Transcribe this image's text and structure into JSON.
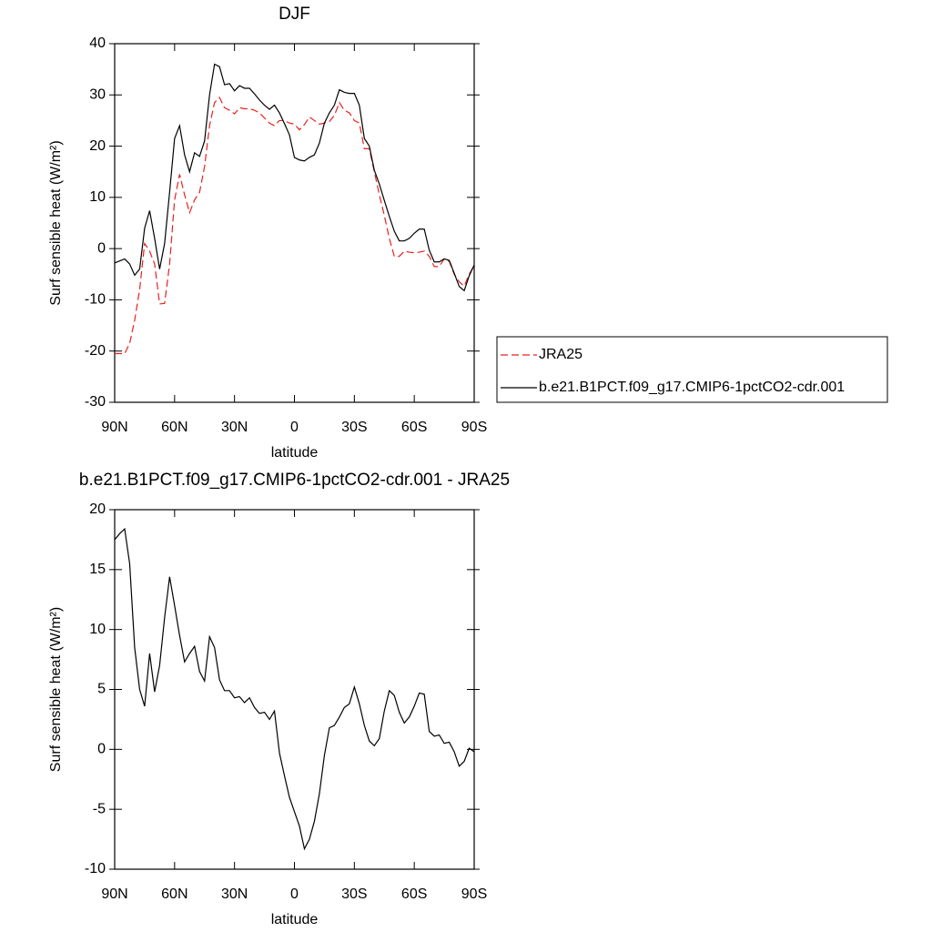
{
  "chart_data": [
    {
      "type": "line",
      "title": "DJF",
      "x_label": "latitude",
      "y_label": "Surf sensible heat (W/m²)",
      "x": [
        90,
        87.5,
        85,
        82.5,
        80,
        77.5,
        75,
        72.5,
        70,
        67.5,
        65,
        62.5,
        60,
        57.5,
        55,
        52.5,
        50,
        47.5,
        45,
        42.5,
        40,
        37.5,
        35,
        32.5,
        30,
        27.5,
        25,
        22.5,
        20,
        17.5,
        15,
        12.5,
        10,
        7.5,
        5,
        2.5,
        0,
        -2.5,
        -5,
        -7.5,
        -10,
        -12.5,
        -15,
        -17.5,
        -20,
        -22.5,
        -25,
        -27.5,
        -30,
        -32.5,
        -35,
        -37.5,
        -40,
        -42.5,
        -45,
        -47.5,
        -50,
        -52.5,
        -55,
        -57.5,
        -60,
        -62.5,
        -65,
        -67.5,
        -70,
        -72.5,
        -75,
        -77.5,
        -80,
        -82.5,
        -85,
        -87.5,
        -90
      ],
      "series": [
        {
          "name": "JRA25",
          "color": "#e8201f",
          "dash": true,
          "values": [
            -20.5,
            -20.5,
            -20.5,
            -18.5,
            -14,
            -8,
            1,
            -0.5,
            -3,
            -10.8,
            -10.7,
            -3,
            9.5,
            14.5,
            10.5,
            7,
            9.5,
            11,
            16,
            24,
            28.5,
            29.5,
            27.5,
            27,
            26.3,
            27.5,
            27.3,
            27.3,
            27,
            26.5,
            25.5,
            24.5,
            24,
            25,
            25,
            24.5,
            24.3,
            23.2,
            24.2,
            25.7,
            25,
            24.3,
            24.5,
            24.8,
            26,
            28.5,
            27,
            26.5,
            25,
            24.5,
            19.5,
            19.5,
            15,
            10.5,
            6.5,
            2,
            -1.5,
            -1.5,
            -0.5,
            -0.7,
            -0.8,
            -0.7,
            -0.5,
            -1.5,
            -3.5,
            -3.5,
            -2,
            -2.5,
            -5,
            -6.5,
            -7.3,
            -5,
            -3.3
          ]
        },
        {
          "name": "b.e21.B1PCT.f09_g17.CMIP6-1pctCO2-cdr.001",
          "color": "#000000",
          "dash": false,
          "values": [
            -2.8,
            -2.4,
            -2,
            -3,
            -5.2,
            -4,
            4,
            7.4,
            2,
            -4,
            1,
            11,
            21.5,
            24,
            18.3,
            15,
            18.7,
            18,
            21,
            30,
            36,
            35.5,
            32,
            32.2,
            30.8,
            31.8,
            31.3,
            31.3,
            30.2,
            29,
            28,
            27.2,
            28,
            26.5,
            24.4,
            22.2,
            17.8,
            17.3,
            17.1,
            17.8,
            18.3,
            20.6,
            24.5,
            26.5,
            28,
            31,
            30.5,
            30.3,
            30.3,
            28,
            21.5,
            20,
            15.3,
            12.6,
            9.4,
            6.3,
            3.4,
            1.5,
            1.5,
            2,
            3,
            3.8,
            3.8,
            -0.3,
            -2.6,
            -2.6,
            -2,
            -2.3,
            -4.8,
            -7.4,
            -8.2,
            -5.3,
            -3.2
          ]
        }
      ],
      "xlim": [
        90,
        -90
      ],
      "xticks": [
        {
          "value": 90,
          "label": "90N"
        },
        {
          "value": 60,
          "label": "60N"
        },
        {
          "value": 30,
          "label": "30N"
        },
        0,
        {
          "value": -30,
          "label": "30S"
        },
        {
          "value": -60,
          "label": "60S"
        },
        {
          "value": -90,
          "label": "90S"
        }
      ],
      "ylim": [
        -30,
        40
      ],
      "yticks": [
        -30,
        -20,
        -10,
        0,
        10,
        20,
        30,
        40
      ],
      "legend": "right"
    },
    {
      "type": "line",
      "title": "b.e21.B1PCT.f09_g17.CMIP6-1pctCO2-cdr.001 - JRA25",
      "x_label": "latitude",
      "y_label": "Surf sensible heat (W/m²)",
      "x": [
        90,
        87.5,
        85,
        82.5,
        80,
        77.5,
        75,
        72.5,
        70,
        67.5,
        65,
        62.5,
        60,
        57.5,
        55,
        52.5,
        50,
        47.5,
        45,
        42.5,
        40,
        37.5,
        35,
        32.5,
        30,
        27.5,
        25,
        22.5,
        20,
        17.5,
        15,
        12.5,
        10,
        7.5,
        5,
        2.5,
        0,
        -2.5,
        -5,
        -7.5,
        -10,
        -12.5,
        -15,
        -17.5,
        -20,
        -22.5,
        -25,
        -27.5,
        -30,
        -32.5,
        -35,
        -37.5,
        -40,
        -42.5,
        -45,
        -47.5,
        -50,
        -52.5,
        -55,
        -57.5,
        -60,
        -62.5,
        -65,
        -67.5,
        -70,
        -72.5,
        -75,
        -77.5,
        -80,
        -82.5,
        -85,
        -87.5,
        -90
      ],
      "series": [
        {
          "color": "#000000",
          "dash": false,
          "values": [
            17.5,
            18,
            18.4,
            15.5,
            8.5,
            5,
            3.6,
            8,
            4.8,
            7,
            11,
            14.4,
            12,
            9.5,
            7.3,
            8,
            8.6,
            6.5,
            5.7,
            9.4,
            8.5,
            5.8,
            4.9,
            4.9,
            4.3,
            4.4,
            3.9,
            4.3,
            3.5,
            3,
            3.1,
            2.5,
            3.2,
            -0.3,
            -2.2,
            -4,
            -5.2,
            -6.4,
            -8.3,
            -7.5,
            -6,
            -3.7,
            -0.5,
            1.8,
            2,
            2.7,
            3.5,
            3.8,
            5.2,
            3.8,
            2,
            0.7,
            0.3,
            0.9,
            3.2,
            4.9,
            4.5,
            3.1,
            2.2,
            2.7,
            3.6,
            4.7,
            4.6,
            1.5,
            1.1,
            1.2,
            0.5,
            0.6,
            -0.2,
            -1.4,
            -1,
            0.1,
            -0.2
          ]
        }
      ],
      "xlim": [
        90,
        -90
      ],
      "xticks": [
        {
          "value": 90,
          "label": "90N"
        },
        {
          "value": 60,
          "label": "60N"
        },
        {
          "value": 30,
          "label": "30N"
        },
        0,
        {
          "value": -30,
          "label": "30S"
        },
        {
          "value": -60,
          "label": "60S"
        },
        {
          "value": -90,
          "label": "90S"
        }
      ],
      "ylim": [
        -10,
        20
      ],
      "yticks": [
        -10,
        -5,
        0,
        5,
        10,
        15,
        20
      ]
    }
  ]
}
